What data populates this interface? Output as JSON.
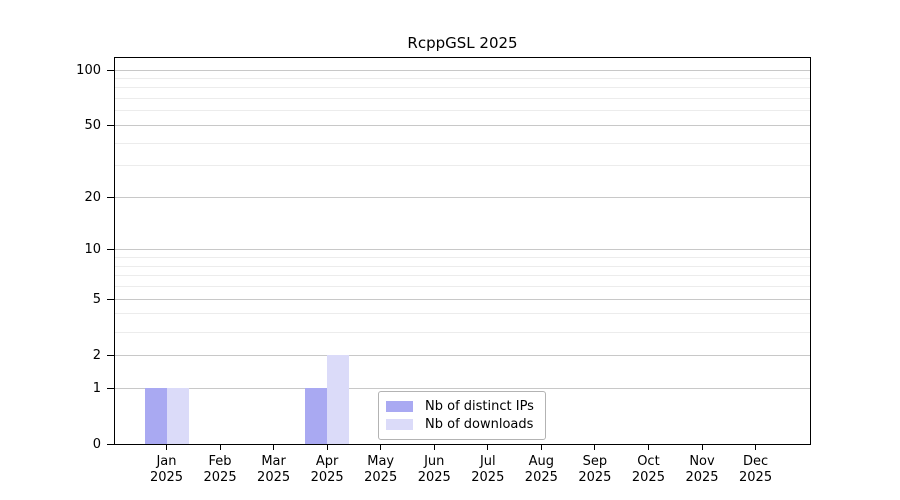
{
  "figure": {
    "title": "RcppGSL 2025"
  },
  "chart_data": {
    "type": "bar",
    "title": "RcppGSL 2025",
    "categories": [
      "Jan 2025",
      "Feb 2025",
      "Mar 2025",
      "Apr 2025",
      "May 2025",
      "Jun 2025",
      "Jul 2025",
      "Aug 2025",
      "Sep 2025",
      "Oct 2025",
      "Nov 2025",
      "Dec 2025"
    ],
    "x_tick_months": [
      "Jan",
      "Feb",
      "Mar",
      "Apr",
      "May",
      "Jun",
      "Jul",
      "Aug",
      "Sep",
      "Oct",
      "Nov",
      "Dec"
    ],
    "x_tick_year": "2025",
    "series": [
      {
        "name": "Nb of distinct IPs",
        "color": "#a9a9f2",
        "values": [
          1,
          0,
          0,
          1,
          0,
          0,
          0,
          0,
          0,
          0,
          0,
          0
        ]
      },
      {
        "name": "Nb of downloads",
        "color": "#dbdbf9",
        "values": [
          1,
          0,
          0,
          2,
          0,
          0,
          0,
          0,
          0,
          0,
          0,
          0
        ]
      }
    ],
    "y_axis": {
      "scale": "log1p",
      "major_ticks": [
        0,
        1,
        2,
        5,
        10,
        20,
        50,
        100
      ],
      "minor_gridlines": [
        3,
        4,
        6,
        7,
        8,
        9,
        30,
        40,
        60,
        70,
        80,
        90
      ],
      "ylim": [
        0,
        118
      ]
    },
    "xlabel": "",
    "ylabel": "",
    "grid": "horizontal-only",
    "legend_position": "bottom-center",
    "colors": {
      "major_grid": "#c8c8c8",
      "minor_grid": "#ececec",
      "axis": "#000000",
      "background": "#ffffff"
    }
  }
}
